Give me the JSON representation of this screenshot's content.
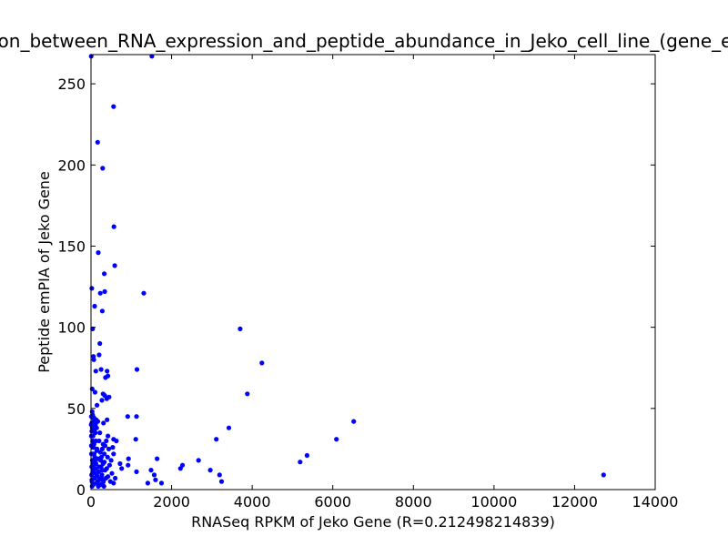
{
  "chart_data": {
    "type": "scatter",
    "title": "Correlation_between_RNA_expression_and_peptide_abundance_in_Jeko_cell_line_(gene_expression)",
    "xlabel": "RNASeq RPKM of Jeko Gene (R=0.212498214839)",
    "ylabel": "Peptide emPIA of Jeko Gene",
    "xlim": [
      0,
      14000
    ],
    "ylim": [
      0,
      268
    ],
    "x_ticks": [
      0,
      2000,
      4000,
      6000,
      8000,
      10000,
      12000,
      14000
    ],
    "y_ticks": [
      0,
      50,
      100,
      150,
      200,
      250
    ],
    "x_tick_labels": [
      "0",
      "2000",
      "4000",
      "6000",
      "8000",
      "10000",
      "12000",
      "14000"
    ],
    "y_tick_labels": [
      "0",
      "50",
      "100",
      "150",
      "200",
      "250"
    ],
    "grid": false,
    "marker_color": "#0000ff",
    "points": [
      [
        5,
        267
      ],
      [
        1510,
        267
      ],
      [
        560,
        236
      ],
      [
        165,
        214
      ],
      [
        290,
        198
      ],
      [
        570,
        162
      ],
      [
        180,
        146
      ],
      [
        590,
        138
      ],
      [
        330,
        133
      ],
      [
        1310,
        121
      ],
      [
        230,
        121
      ],
      [
        340,
        122
      ],
      [
        20,
        124
      ],
      [
        90,
        113
      ],
      [
        280,
        110
      ],
      [
        3700,
        99
      ],
      [
        40,
        99
      ],
      [
        220,
        90
      ],
      [
        4240,
        78
      ],
      [
        200,
        83
      ],
      [
        70,
        80
      ],
      [
        60,
        82
      ],
      [
        120,
        73
      ],
      [
        250,
        74
      ],
      [
        400,
        73
      ],
      [
        1140,
        74
      ],
      [
        420,
        70
      ],
      [
        360,
        69
      ],
      [
        3880,
        59
      ],
      [
        450,
        57
      ],
      [
        390,
        56
      ],
      [
        300,
        59
      ],
      [
        100,
        60
      ],
      [
        30,
        62
      ],
      [
        150,
        52
      ],
      [
        270,
        55
      ],
      [
        340,
        58
      ],
      [
        910,
        45
      ],
      [
        1130,
        45
      ],
      [
        6520,
        42
      ],
      [
        3420,
        38
      ],
      [
        310,
        41
      ],
      [
        400,
        43
      ],
      [
        170,
        42
      ],
      [
        60,
        44
      ],
      [
        130,
        43
      ],
      [
        3110,
        31
      ],
      [
        6090,
        31
      ],
      [
        1110,
        31
      ],
      [
        420,
        33
      ],
      [
        560,
        31
      ],
      [
        630,
        30
      ],
      [
        540,
        26
      ],
      [
        380,
        30
      ],
      [
        5360,
        21
      ],
      [
        5190,
        17
      ],
      [
        2670,
        18
      ],
      [
        1640,
        19
      ],
      [
        930,
        19
      ],
      [
        560,
        22
      ],
      [
        280,
        25
      ],
      [
        330,
        22
      ],
      [
        240,
        18
      ],
      [
        2270,
        15
      ],
      [
        2220,
        13
      ],
      [
        2960,
        12
      ],
      [
        3190,
        9
      ],
      [
        3240,
        5
      ],
      [
        1490,
        12
      ],
      [
        1570,
        9
      ],
      [
        1600,
        6
      ],
      [
        1750,
        4
      ],
      [
        1410,
        4
      ],
      [
        1130,
        11
      ],
      [
        12720,
        9
      ],
      [
        920,
        15
      ],
      [
        720,
        16
      ],
      [
        760,
        13
      ],
      [
        600,
        7
      ],
      [
        520,
        10
      ],
      [
        480,
        5
      ],
      [
        560,
        4
      ],
      [
        420,
        8
      ],
      [
        350,
        12
      ],
      [
        300,
        16
      ],
      [
        260,
        20
      ],
      [
        200,
        14
      ],
      [
        150,
        25
      ],
      [
        120,
        30
      ],
      [
        90,
        37
      ],
      [
        60,
        15
      ],
      [
        50,
        33
      ],
      [
        40,
        46
      ],
      [
        30,
        48
      ],
      [
        20,
        41
      ],
      [
        10,
        27
      ],
      [
        15,
        9
      ],
      [
        25,
        5
      ],
      [
        35,
        18
      ],
      [
        45,
        22
      ],
      [
        55,
        3
      ],
      [
        65,
        12
      ],
      [
        75,
        28
      ],
      [
        85,
        7
      ],
      [
        95,
        20
      ],
      [
        105,
        35
      ],
      [
        115,
        10
      ],
      [
        125,
        16
      ],
      [
        135,
        4
      ],
      [
        145,
        24
      ],
      [
        160,
        8
      ],
      [
        175,
        19
      ],
      [
        190,
        11
      ],
      [
        210,
        6
      ],
      [
        230,
        23
      ],
      [
        250,
        14
      ],
      [
        270,
        9
      ],
      [
        290,
        3
      ],
      [
        310,
        5
      ],
      [
        330,
        17
      ],
      [
        350,
        27
      ],
      [
        370,
        7
      ],
      [
        390,
        13
      ],
      [
        410,
        20
      ],
      [
        440,
        25
      ],
      [
        460,
        15
      ],
      [
        500,
        18
      ],
      [
        80,
        44
      ],
      [
        110,
        40
      ],
      [
        140,
        38
      ],
      [
        10,
        45
      ],
      [
        30,
        45
      ],
      [
        50,
        45
      ],
      [
        70,
        42
      ],
      [
        20,
        36
      ],
      [
        40,
        30
      ],
      [
        60,
        26
      ],
      [
        80,
        22
      ],
      [
        100,
        18
      ],
      [
        120,
        13
      ],
      [
        140,
        9
      ],
      [
        160,
        5
      ],
      [
        180,
        2
      ],
      [
        200,
        30
      ],
      [
        220,
        35
      ],
      [
        240,
        3
      ],
      [
        260,
        7
      ],
      [
        280,
        12
      ],
      [
        300,
        28
      ],
      [
        320,
        2
      ],
      [
        5,
        40
      ],
      [
        8,
        33
      ],
      [
        12,
        22
      ],
      [
        18,
        14
      ],
      [
        22,
        6
      ],
      [
        28,
        2
      ],
      [
        32,
        38
      ],
      [
        38,
        10
      ],
      [
        42,
        16
      ],
      [
        48,
        26
      ]
    ]
  }
}
